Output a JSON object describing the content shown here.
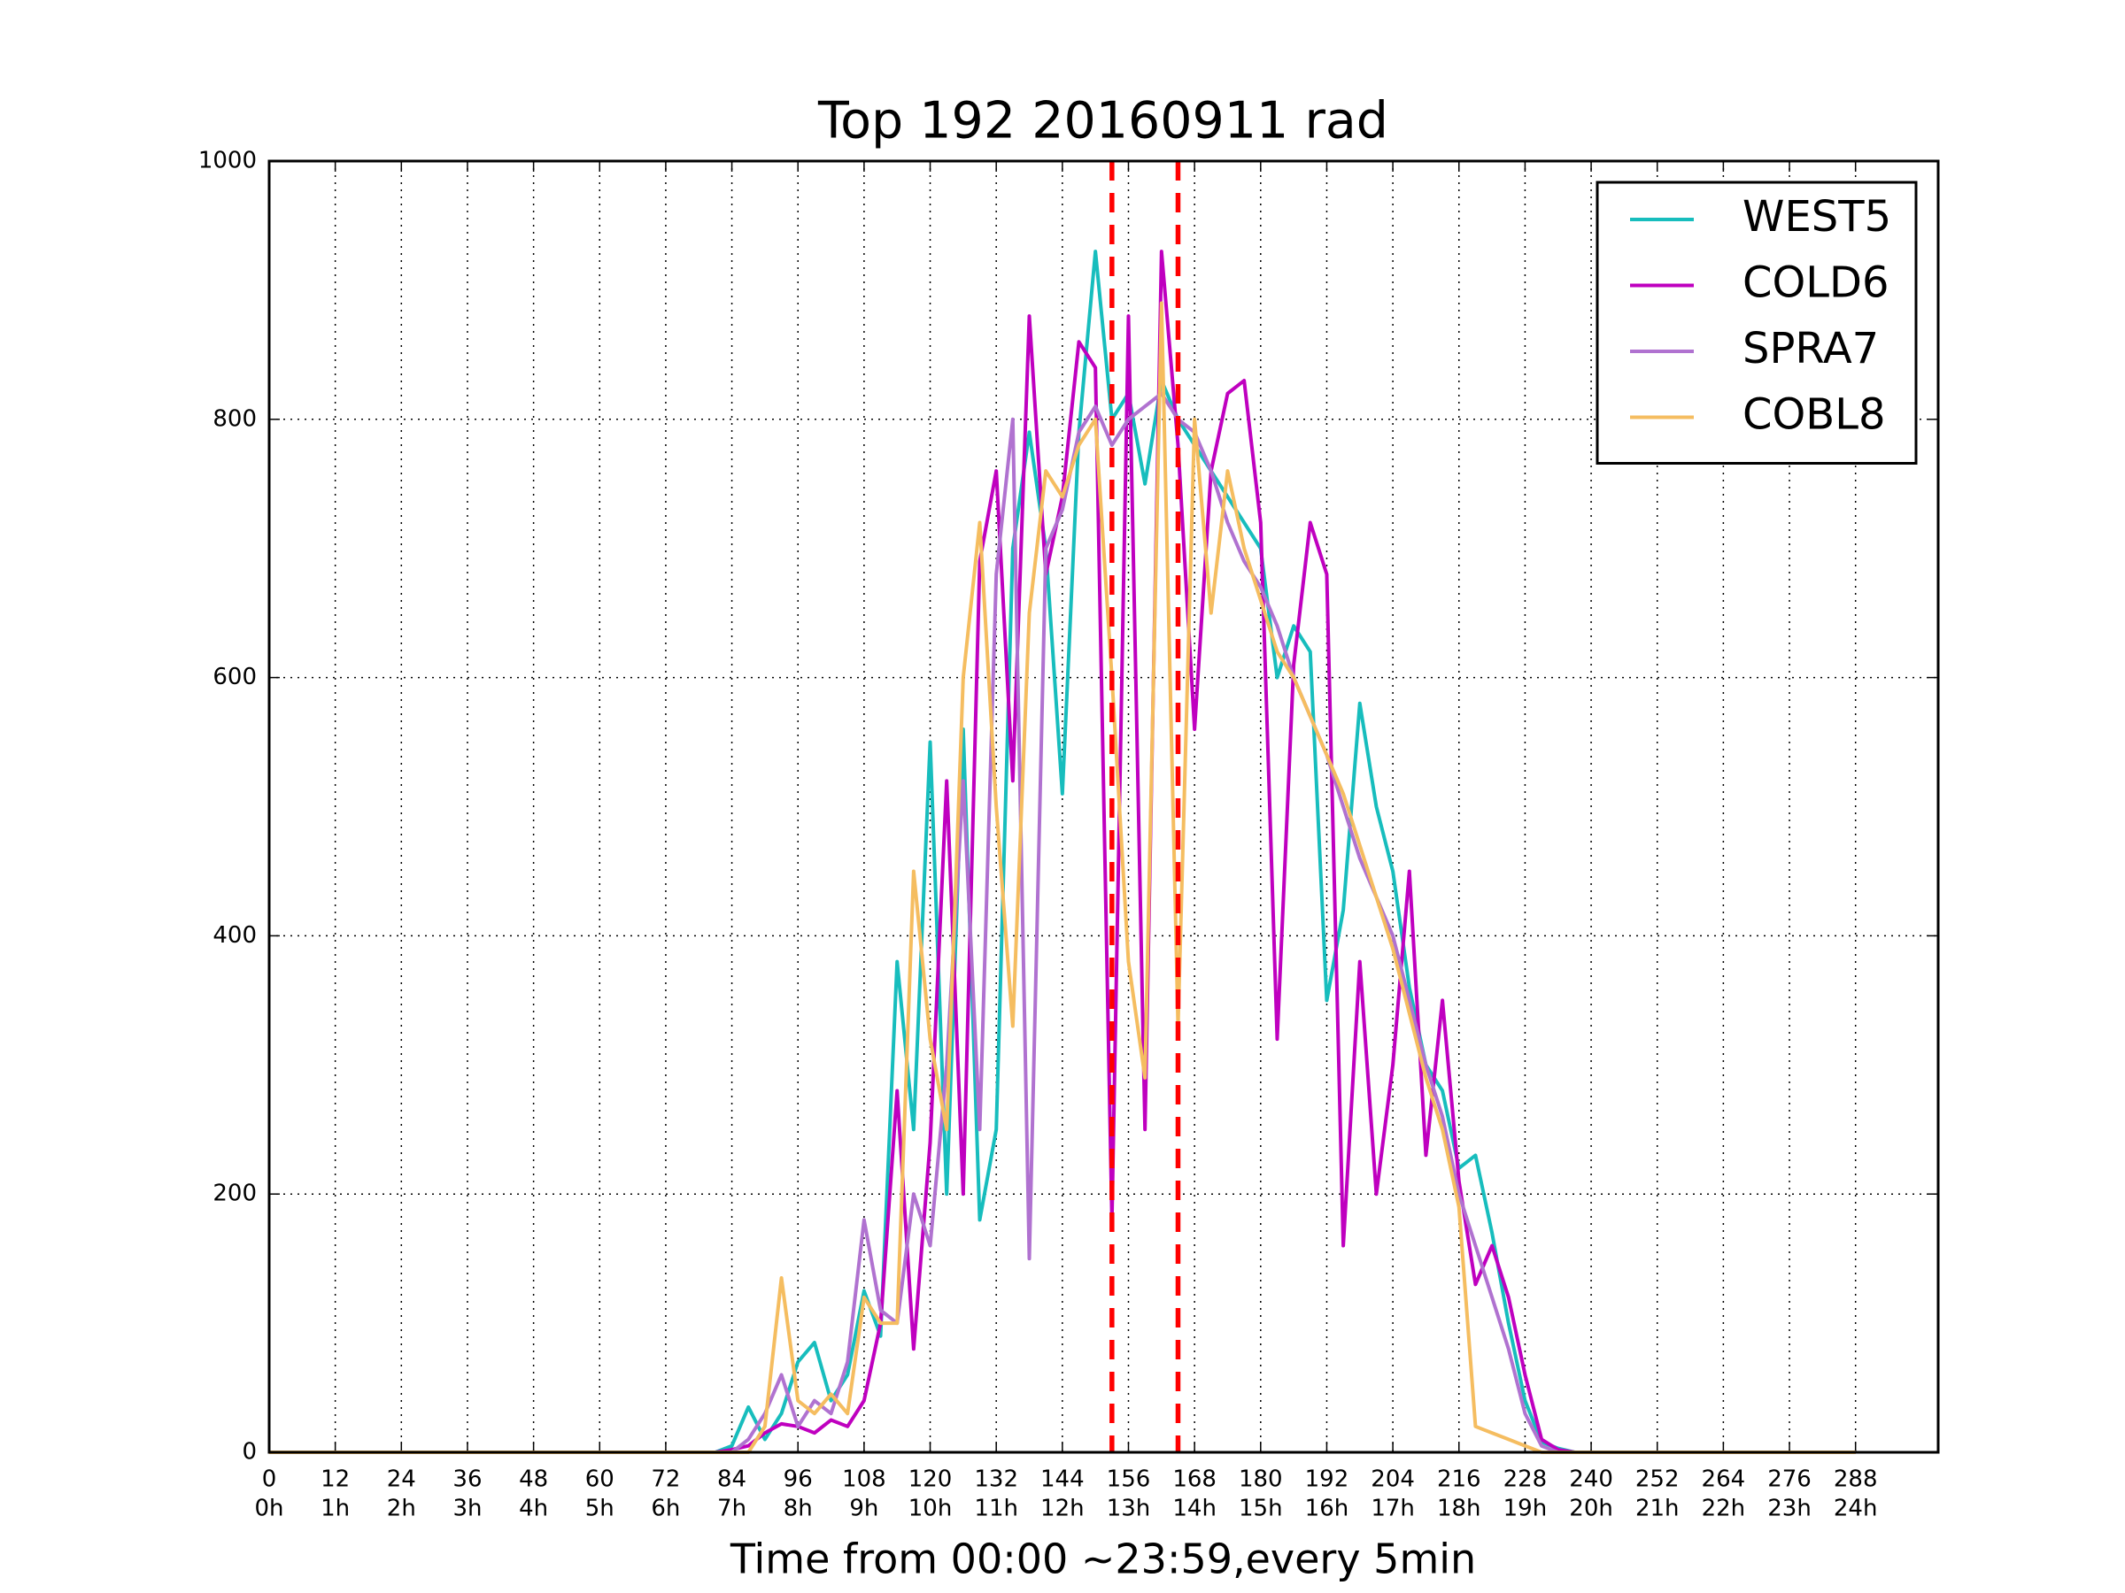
{
  "chart_data": {
    "type": "line",
    "title": "Top 192 20160911 rad",
    "xlabel": "Time from 00:00 ~23:59,every 5min",
    "x": [
      0,
      81,
      84,
      87,
      90,
      93,
      96,
      99,
      102,
      105,
      108,
      111,
      114,
      117,
      120,
      123,
      126,
      129,
      132,
      135,
      138,
      141,
      144,
      147,
      150,
      153,
      156,
      159,
      162,
      165,
      168,
      171,
      174,
      177,
      180,
      183,
      186,
      189,
      192,
      195,
      198,
      201,
      204,
      207,
      210,
      213,
      216,
      219,
      222,
      225,
      228,
      231,
      234,
      237,
      240,
      288
    ],
    "series": [
      {
        "name": "WEST5",
        "color": "#17bdbd",
        "values": [
          0,
          0,
          5,
          35,
          10,
          30,
          70,
          85,
          40,
          60,
          125,
          90,
          380,
          250,
          550,
          200,
          560,
          180,
          250,
          700,
          790,
          700,
          510,
          790,
          930,
          800,
          820,
          750,
          830,
          800,
          780,
          760,
          740,
          720,
          700,
          600,
          640,
          620,
          350,
          420,
          580,
          500,
          450,
          360,
          300,
          280,
          220,
          230,
          170,
          100,
          40,
          8,
          3,
          0,
          0,
          0
        ]
      },
      {
        "name": "COLD6",
        "color": "#bf00bf",
        "values": [
          0,
          0,
          2,
          5,
          15,
          22,
          20,
          15,
          25,
          20,
          40,
          100,
          280,
          80,
          240,
          520,
          200,
          690,
          760,
          520,
          880,
          680,
          740,
          860,
          840,
          180,
          880,
          250,
          930,
          780,
          560,
          760,
          820,
          830,
          720,
          320,
          610,
          720,
          680,
          160,
          380,
          200,
          300,
          450,
          230,
          350,
          210,
          130,
          160,
          120,
          60,
          10,
          2,
          0,
          0,
          0
        ]
      },
      {
        "name": "SPRA7",
        "color": "#b072d0",
        "values": [
          0,
          0,
          0,
          10,
          30,
          60,
          20,
          40,
          30,
          70,
          180,
          110,
          100,
          200,
          160,
          300,
          520,
          250,
          680,
          800,
          150,
          700,
          730,
          790,
          810,
          780,
          800,
          810,
          820,
          800,
          790,
          760,
          720,
          690,
          670,
          640,
          600,
          570,
          540,
          500,
          460,
          430,
          400,
          350,
          300,
          260,
          200,
          160,
          120,
          80,
          30,
          5,
          0,
          0,
          0,
          0
        ]
      },
      {
        "name": "COBL8",
        "color": "#f5bd60",
        "values": [
          0,
          0,
          0,
          0,
          20,
          135,
          40,
          30,
          45,
          30,
          120,
          100,
          100,
          450,
          320,
          250,
          600,
          720,
          500,
          330,
          650,
          760,
          740,
          780,
          800,
          600,
          380,
          290,
          890,
          330,
          800,
          650,
          760,
          700,
          660,
          620,
          600,
          570,
          540,
          510,
          470,
          430,
          390,
          340,
          290,
          250,
          190,
          20,
          15,
          10,
          5,
          0,
          0,
          0,
          0,
          0
        ]
      }
    ],
    "xlim": [
      0,
      303
    ],
    "ylim": [
      0,
      1000
    ],
    "xticks": [
      0,
      12,
      24,
      36,
      48,
      60,
      72,
      84,
      96,
      108,
      120,
      132,
      144,
      156,
      168,
      180,
      192,
      204,
      216,
      228,
      240,
      252,
      264,
      276,
      288
    ],
    "xtick_hours": [
      "0h",
      "1h",
      "2h",
      "3h",
      "4h",
      "5h",
      "6h",
      "7h",
      "8h",
      "9h",
      "10h",
      "11h",
      "12h",
      "13h",
      "14h",
      "15h",
      "16h",
      "17h",
      "18h",
      "19h",
      "20h",
      "21h",
      "22h",
      "23h",
      "24h"
    ],
    "yticks": [
      0,
      200,
      400,
      600,
      800,
      1000
    ],
    "vlines": {
      "x": [
        153,
        165
      ],
      "color": "#ff0000"
    },
    "grid": true,
    "legend": "upper right"
  }
}
